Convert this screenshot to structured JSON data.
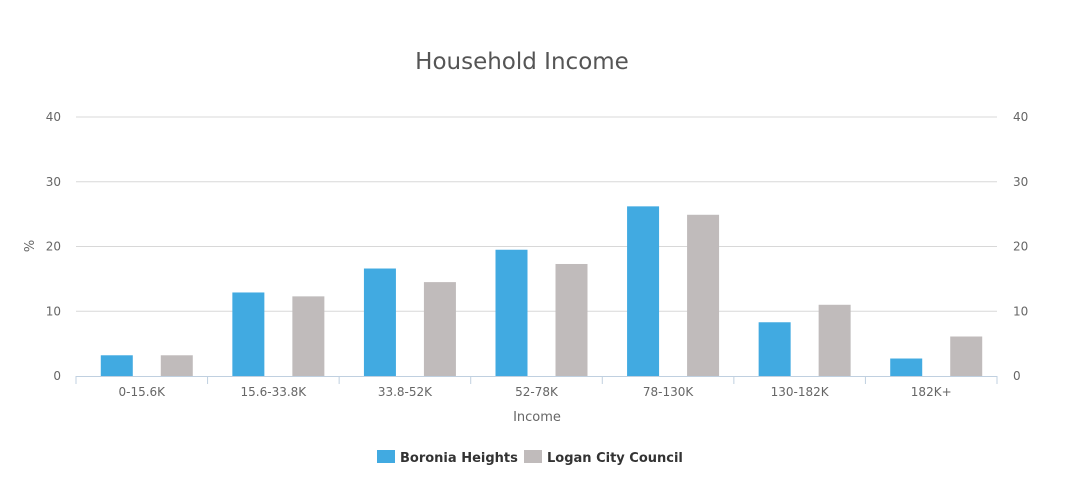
{
  "chart_data": {
    "type": "bar",
    "title": "Household Income",
    "xlabel": "Income",
    "ylabel": "%",
    "ylim": [
      0,
      40
    ],
    "yticks": [
      "0",
      "10",
      "20",
      "30",
      "40"
    ],
    "grid": true,
    "legend_position": "bottom",
    "categories": [
      "0-15.6K",
      "15.6-33.8K",
      "33.8-52K",
      "52-78K",
      "78-130K",
      "130-182K",
      "182K+"
    ],
    "series": [
      {
        "name": "Boronia Heights",
        "color": "#41aae1",
        "values": [
          3.2,
          12.9,
          16.6,
          19.5,
          26.2,
          8.3,
          2.7
        ]
      },
      {
        "name": "Logan City Council",
        "color": "#c0bbbb",
        "values": [
          3.2,
          12.3,
          14.5,
          17.3,
          24.9,
          11.0,
          6.1
        ]
      }
    ]
  }
}
